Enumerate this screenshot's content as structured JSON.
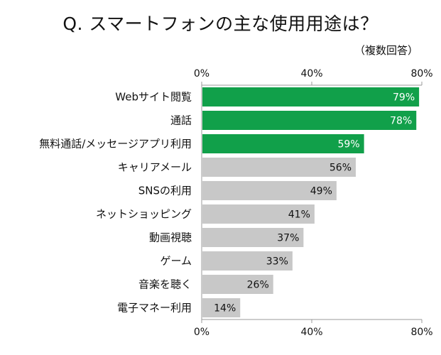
{
  "title": "Q. スマートフォンの主な使用用途は？",
  "subtitle": "（複数回答）",
  "colors": {
    "highlight": "#11a04a",
    "normal": "#c8c8c8",
    "grid": "#999999"
  },
  "chart_data": {
    "type": "bar",
    "orientation": "horizontal",
    "xlim": [
      0,
      80
    ],
    "ticks": [
      "0%",
      "40%",
      "80%"
    ],
    "tick_values": [
      0,
      40,
      80
    ],
    "ticks_top_and_bottom": true,
    "categories": [
      "Webサイト閲覧",
      "通話",
      "無料通話/メッセージアプリ利用",
      "キャリアメール",
      "SNSの利用",
      "ネットショッピング",
      "動画視聴",
      "ゲーム",
      "音楽を聴く",
      "電子マネー利用"
    ],
    "values": [
      79,
      78,
      59,
      56,
      49,
      41,
      37,
      33,
      26,
      14
    ],
    "value_labels": [
      "79%",
      "78%",
      "59%",
      "56%",
      "49%",
      "41%",
      "37%",
      "33%",
      "26%",
      "14%"
    ],
    "highlighted": [
      true,
      true,
      true,
      false,
      false,
      false,
      false,
      false,
      false,
      false
    ]
  }
}
